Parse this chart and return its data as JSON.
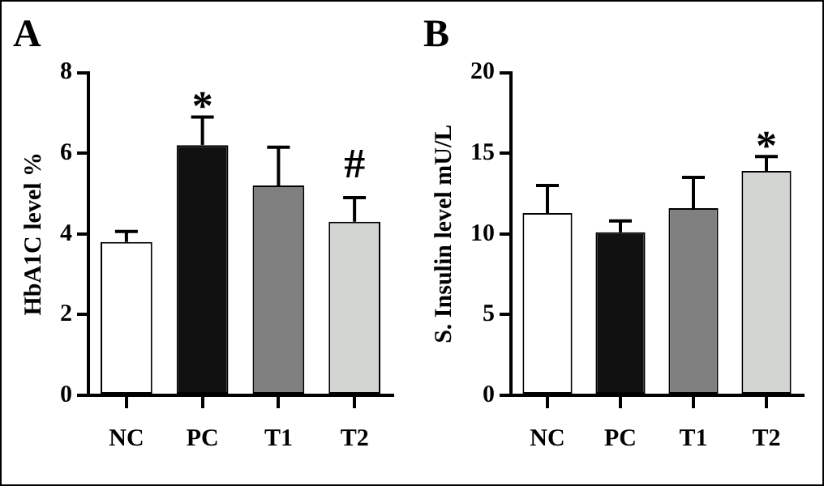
{
  "chart_data": [
    {
      "type": "bar",
      "title": "A",
      "ylabel": "HbA1C level %",
      "categories": [
        "NC",
        "PC",
        "T1",
        "T2"
      ],
      "values": [
        3.8,
        6.2,
        5.2,
        4.3
      ],
      "colors": [
        "#ffffff",
        "#111111",
        "#808080",
        "#d3d5d3"
      ],
      "errors": [
        [
          3.8,
          4.06
        ],
        [
          6.2,
          6.9
        ],
        [
          5.2,
          6.15
        ],
        [
          4.3,
          4.9
        ]
      ],
      "ylim": [
        0,
        8
      ],
      "yticks": [
        0,
        2,
        4,
        6,
        8
      ],
      "grid": false,
      "legend": false,
      "annotations": [
        {
          "text": "*",
          "x": "PC",
          "y": 6.9
        },
        {
          "text": "#",
          "x": "T2",
          "y": 4.9
        }
      ]
    },
    {
      "type": "bar",
      "title": "B",
      "ylabel": "S. Insulin level mU/L",
      "categories": [
        "NC",
        "PC",
        "T1",
        "T2"
      ],
      "values": [
        11.3,
        10.1,
        11.6,
        13.9
      ],
      "colors": [
        "#ffffff",
        "#111111",
        "#808080",
        "#d3d5d3"
      ],
      "errors": [
        [
          11.3,
          13.0
        ],
        [
          10.1,
          10.8
        ],
        [
          11.6,
          13.5
        ],
        [
          13.9,
          14.8
        ]
      ],
      "ylim": [
        0,
        20
      ],
      "yticks": [
        0,
        5,
        10,
        15,
        20
      ],
      "grid": false,
      "legend": false,
      "annotations": [
        {
          "text": "*",
          "x": "T2",
          "y": 14.8
        }
      ]
    }
  ]
}
